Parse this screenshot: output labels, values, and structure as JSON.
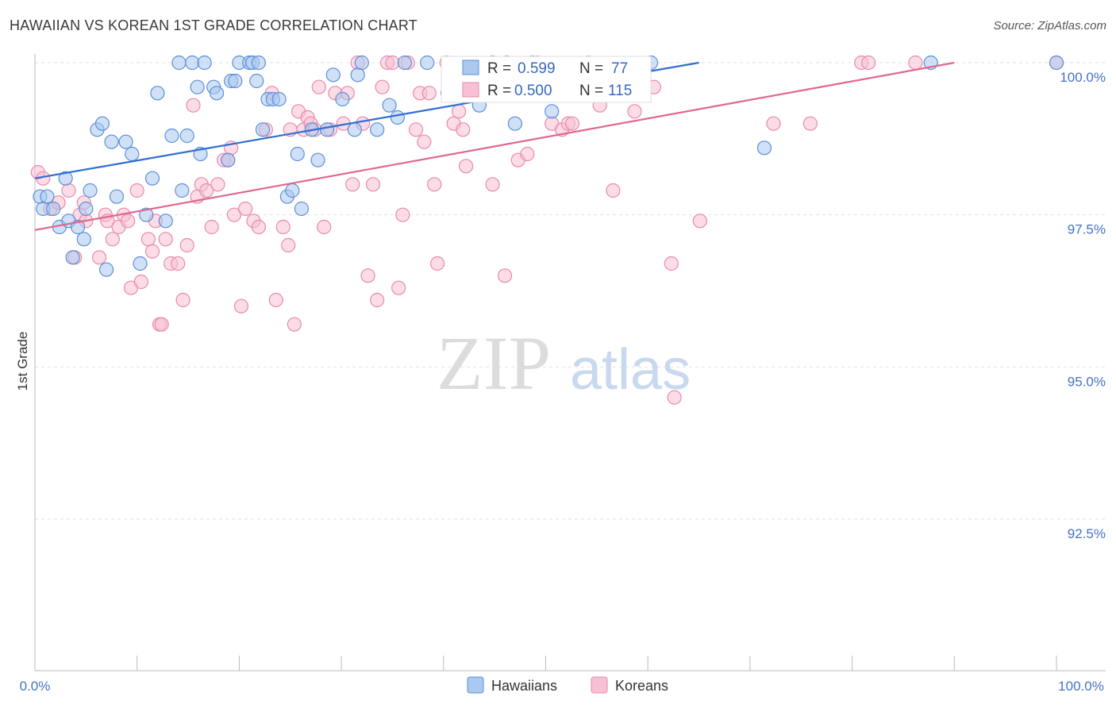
{
  "header": {
    "title": "HAWAIIAN VS KOREAN 1ST GRADE CORRELATION CHART",
    "source": "Source: ZipAtlas.com"
  },
  "watermark": {
    "zip": "ZIP",
    "atlas": "atlas"
  },
  "colors": {
    "hawaiian_fill": "#aac8f0",
    "hawaiian_stroke": "#5b8fd6",
    "hawaiian_line": "#2e6fd0",
    "korean_fill": "#f8c0d4",
    "korean_stroke": "#e88aaa",
    "korean_line": "#e0678f",
    "tick_text": "#4472c4"
  },
  "legend": {
    "hawaiian": {
      "r_label": "R =",
      "r_value": "0.599",
      "n_label": "N =",
      "n_value": "77"
    },
    "korean": {
      "r_label": "R =",
      "r_value": "0.500",
      "n_label": "N =",
      "n_value": "115"
    }
  },
  "bottom_legend": {
    "hawaiians": "Hawaiians",
    "koreans": "Koreans"
  },
  "chart_data": {
    "type": "scatter",
    "title": "HAWAIIAN VS KOREAN 1ST GRADE CORRELATION CHART",
    "xlabel": "",
    "ylabel": "1st Grade",
    "xlim": [
      0,
      100
    ],
    "ylim": [
      90.0,
      100.5
    ],
    "x_ticks": [
      "0.0%",
      "100.0%"
    ],
    "y_ticks": [
      {
        "value": 100.0,
        "label": "100.0%"
      },
      {
        "value": 97.5,
        "label": "97.5%"
      },
      {
        "value": 95.0,
        "label": "95.0%"
      },
      {
        "value": 92.5,
        "label": "92.5%"
      }
    ],
    "grid": true,
    "legend_position": "top-center",
    "series": [
      {
        "name": "Hawaiians",
        "trend": {
          "x": [
            0,
            65
          ],
          "y": [
            98.1,
            100.0
          ]
        },
        "points": [
          [
            0.5,
            97.8
          ],
          [
            0.8,
            97.6
          ],
          [
            1.2,
            97.8
          ],
          [
            1.8,
            97.6
          ],
          [
            2.4,
            97.3
          ],
          [
            3.0,
            98.1
          ],
          [
            3.3,
            97.4
          ],
          [
            3.7,
            96.8
          ],
          [
            4.2,
            97.3
          ],
          [
            4.8,
            97.1
          ],
          [
            5.0,
            97.6
          ],
          [
            5.4,
            97.9
          ],
          [
            6.1,
            98.9
          ],
          [
            6.6,
            99.0
          ],
          [
            7.0,
            96.6
          ],
          [
            7.5,
            98.7
          ],
          [
            8.0,
            97.8
          ],
          [
            8.9,
            98.7
          ],
          [
            9.5,
            98.5
          ],
          [
            10.3,
            96.7
          ],
          [
            10.9,
            97.5
          ],
          [
            11.5,
            98.1
          ],
          [
            12.0,
            99.5
          ],
          [
            12.8,
            97.4
          ],
          [
            13.4,
            98.8
          ],
          [
            14.1,
            100.0
          ],
          [
            14.4,
            97.9
          ],
          [
            14.9,
            98.8
          ],
          [
            15.4,
            100.0
          ],
          [
            15.9,
            99.6
          ],
          [
            16.2,
            98.5
          ],
          [
            16.6,
            100.0
          ],
          [
            17.5,
            99.6
          ],
          [
            17.8,
            99.5
          ],
          [
            18.9,
            98.4
          ],
          [
            19.2,
            99.7
          ],
          [
            19.6,
            99.7
          ],
          [
            20.0,
            100.0
          ],
          [
            21.0,
            100.0
          ],
          [
            21.3,
            100.0
          ],
          [
            21.7,
            99.7
          ],
          [
            21.9,
            100.0
          ],
          [
            22.3,
            98.9
          ],
          [
            22.8,
            99.4
          ],
          [
            23.3,
            99.4
          ],
          [
            23.9,
            99.4
          ],
          [
            24.7,
            97.8
          ],
          [
            25.2,
            97.9
          ],
          [
            25.7,
            98.5
          ],
          [
            26.1,
            97.6
          ],
          [
            27.1,
            98.9
          ],
          [
            27.7,
            98.4
          ],
          [
            28.6,
            98.9
          ],
          [
            29.2,
            99.8
          ],
          [
            30.1,
            99.4
          ],
          [
            31.3,
            98.9
          ],
          [
            31.6,
            99.8
          ],
          [
            32.0,
            100.0
          ],
          [
            33.5,
            98.9
          ],
          [
            34.7,
            99.3
          ],
          [
            35.5,
            99.1
          ],
          [
            36.2,
            100.0
          ],
          [
            38.4,
            100.0
          ],
          [
            40.4,
            99.5
          ],
          [
            43.5,
            99.3
          ],
          [
            44.8,
            100.0
          ],
          [
            46.2,
            100.0
          ],
          [
            47.0,
            99.0
          ],
          [
            48.7,
            100.0
          ],
          [
            50.6,
            99.2
          ],
          [
            60.3,
            100.0
          ],
          [
            71.4,
            98.6
          ],
          [
            87.7,
            100.0
          ],
          [
            100.0,
            100.0
          ]
        ]
      },
      {
        "name": "Koreans",
        "trend": {
          "x": [
            0,
            90
          ],
          "y": [
            97.25,
            100.0
          ]
        },
        "points": [
          [
            0.3,
            98.2
          ],
          [
            0.8,
            98.1
          ],
          [
            1.5,
            97.6
          ],
          [
            2.3,
            97.7
          ],
          [
            3.3,
            97.9
          ],
          [
            3.9,
            96.8
          ],
          [
            4.4,
            97.5
          ],
          [
            4.8,
            97.7
          ],
          [
            5.0,
            97.4
          ],
          [
            6.3,
            96.8
          ],
          [
            6.9,
            97.5
          ],
          [
            7.1,
            97.4
          ],
          [
            7.6,
            97.1
          ],
          [
            8.2,
            97.3
          ],
          [
            8.7,
            97.5
          ],
          [
            9.1,
            97.4
          ],
          [
            9.4,
            96.3
          ],
          [
            10.0,
            97.9
          ],
          [
            10.4,
            96.4
          ],
          [
            11.1,
            97.1
          ],
          [
            11.5,
            96.9
          ],
          [
            11.8,
            97.4
          ],
          [
            12.2,
            95.7
          ],
          [
            12.4,
            95.7
          ],
          [
            12.8,
            97.1
          ],
          [
            13.3,
            96.7
          ],
          [
            14.0,
            96.7
          ],
          [
            14.5,
            96.1
          ],
          [
            14.9,
            97.0
          ],
          [
            15.5,
            99.3
          ],
          [
            15.9,
            97.8
          ],
          [
            16.3,
            98.0
          ],
          [
            16.8,
            97.9
          ],
          [
            17.3,
            97.3
          ],
          [
            17.9,
            98.0
          ],
          [
            18.5,
            98.4
          ],
          [
            18.9,
            98.4
          ],
          [
            19.2,
            98.6
          ],
          [
            19.5,
            97.5
          ],
          [
            20.2,
            96.0
          ],
          [
            20.6,
            97.6
          ],
          [
            21.4,
            97.4
          ],
          [
            21.9,
            97.3
          ],
          [
            22.6,
            98.9
          ],
          [
            23.2,
            99.5
          ],
          [
            23.6,
            96.1
          ],
          [
            24.3,
            97.3
          ],
          [
            24.8,
            97.0
          ],
          [
            25.0,
            98.9
          ],
          [
            25.4,
            95.7
          ],
          [
            25.8,
            99.2
          ],
          [
            26.3,
            98.9
          ],
          [
            26.7,
            99.1
          ],
          [
            27.0,
            99.0
          ],
          [
            27.4,
            98.9
          ],
          [
            27.8,
            99.6
          ],
          [
            28.3,
            97.3
          ],
          [
            28.9,
            98.9
          ],
          [
            29.4,
            99.5
          ],
          [
            30.2,
            99.0
          ],
          [
            30.6,
            99.5
          ],
          [
            31.1,
            98.0
          ],
          [
            31.6,
            100.0
          ],
          [
            32.1,
            99.0
          ],
          [
            32.6,
            96.5
          ],
          [
            33.1,
            98.0
          ],
          [
            33.5,
            96.1
          ],
          [
            34.0,
            99.6
          ],
          [
            34.5,
            100.0
          ],
          [
            35.0,
            100.0
          ],
          [
            35.6,
            96.3
          ],
          [
            36.0,
            97.5
          ],
          [
            36.5,
            100.0
          ],
          [
            37.3,
            98.9
          ],
          [
            37.7,
            99.5
          ],
          [
            38.1,
            98.7
          ],
          [
            38.6,
            99.5
          ],
          [
            39.1,
            98.0
          ],
          [
            39.4,
            96.7
          ],
          [
            40.3,
            100.0
          ],
          [
            41.0,
            99.0
          ],
          [
            41.5,
            99.2
          ],
          [
            41.9,
            98.9
          ],
          [
            42.2,
            98.3
          ],
          [
            43.5,
            99.5
          ],
          [
            44.8,
            98.0
          ],
          [
            46.0,
            96.5
          ],
          [
            47.3,
            98.4
          ],
          [
            48.2,
            98.5
          ],
          [
            49.2,
            100.0
          ],
          [
            50.6,
            99.0
          ],
          [
            51.6,
            98.9
          ],
          [
            52.2,
            99.0
          ],
          [
            52.6,
            99.0
          ],
          [
            53.3,
            99.5
          ],
          [
            54.2,
            100.0
          ],
          [
            55.3,
            99.3
          ],
          [
            56.6,
            97.9
          ],
          [
            57.5,
            99.5
          ],
          [
            58.7,
            99.2
          ],
          [
            59.5,
            99.6
          ],
          [
            60.6,
            99.6
          ],
          [
            62.3,
            96.7
          ],
          [
            62.6,
            94.5
          ],
          [
            65.1,
            97.4
          ],
          [
            72.3,
            99.0
          ],
          [
            75.9,
            99.0
          ],
          [
            80.9,
            100.0
          ],
          [
            81.6,
            100.0
          ],
          [
            86.2,
            100.0
          ],
          [
            100.0,
            100.0
          ]
        ]
      }
    ]
  }
}
